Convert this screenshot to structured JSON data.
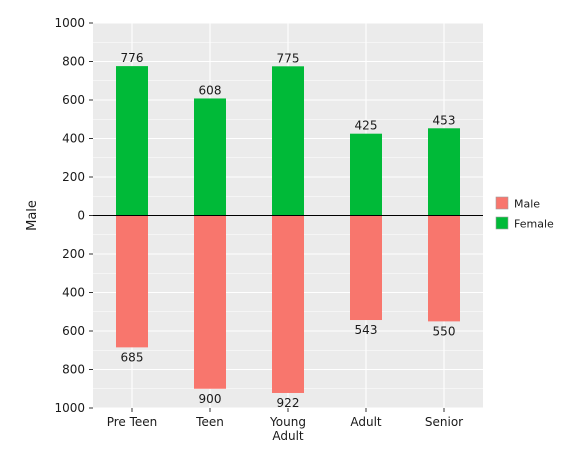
{
  "chart_data": {
    "type": "bar",
    "categories": [
      "Pre Teen",
      "Teen",
      "Young Adult",
      "Adult",
      "Senior"
    ],
    "category_label_lines": [
      [
        "Pre Teen"
      ],
      [
        "Teen"
      ],
      [
        "Young",
        "Adult"
      ],
      [
        "Adult"
      ],
      [
        "Senior"
      ]
    ],
    "series": [
      {
        "name": "Male",
        "values": [
          685,
          900,
          922,
          543,
          550
        ],
        "direction": "down",
        "color": "#F8766D"
      },
      {
        "name": "Female",
        "values": [
          776,
          608,
          775,
          425,
          453
        ],
        "direction": "up",
        "color": "#00BA38"
      }
    ],
    "data_labels": {
      "Female": [
        "776",
        "608",
        "775",
        "425",
        "453"
      ],
      "Male": [
        "685",
        "900",
        "922",
        "543",
        "550"
      ]
    },
    "ylabel": "Male",
    "xlabel": "",
    "ylim": [
      -1000,
      1000
    ],
    "y_ticks": [
      1000,
      800,
      600,
      400,
      200,
      0,
      -200,
      -400,
      -600,
      -800,
      -1000
    ],
    "y_tick_labels": [
      "1000",
      "800",
      "600",
      "400",
      "200",
      "0",
      "200",
      "400",
      "600",
      "800",
      "1000"
    ],
    "legend": {
      "placement": "right",
      "entries": [
        "Male",
        "Female"
      ]
    },
    "grid": true,
    "panel_color": "#EBEBEB",
    "grid_color": "#FFFFFF",
    "zero_line_color": "#000000"
  }
}
